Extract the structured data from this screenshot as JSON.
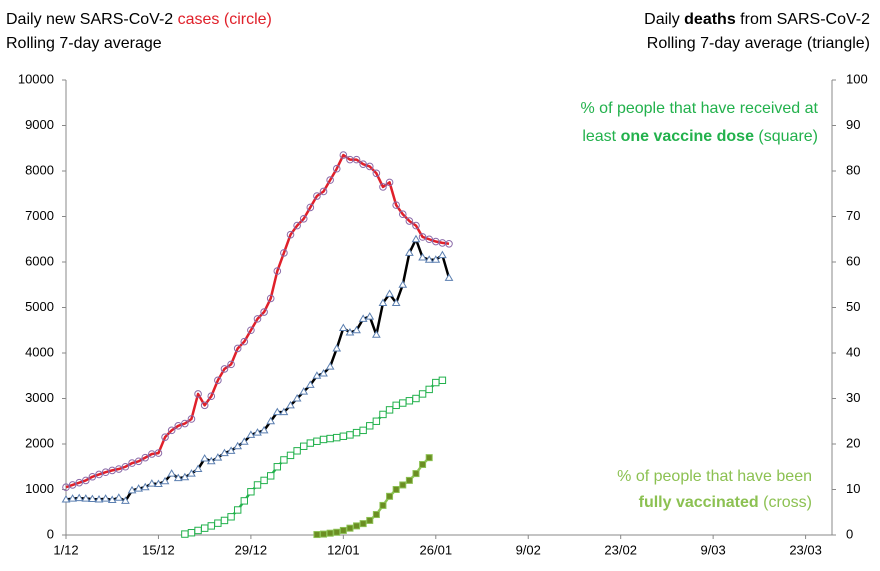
{
  "chart_data": {
    "type": "line",
    "title_left": {
      "line1": [
        "Daily new SARS-CoV-2 ",
        "cases (circle)"
      ],
      "line2": "Rolling 7-day average"
    },
    "title_right": {
      "line1": [
        "Daily ",
        "deaths",
        " from SARS-CoV-2"
      ],
      "line2": "Rolling 7-day average (triangle)"
    },
    "annotations": [
      {
        "line1": "% of people that have received at",
        "line2": [
          "least ",
          "one vaccine dose",
          " (square)"
        ],
        "color": "#22b14c"
      },
      {
        "line1": "% of people that have been",
        "line2": [
          "fully vaccinated",
          " (cross)"
        ],
        "color": "#8cc152"
      }
    ],
    "x": [
      0,
      1,
      2,
      3,
      4,
      5,
      6,
      7,
      8,
      9,
      10,
      11,
      12,
      13,
      14,
      15,
      16,
      17,
      18,
      19,
      20,
      21,
      22,
      23,
      24,
      25,
      26,
      27,
      28,
      29,
      30,
      31,
      32,
      33,
      34,
      35,
      36,
      37,
      38,
      39,
      40,
      41,
      42,
      43,
      44,
      45,
      46,
      47,
      48,
      49,
      50,
      51,
      52,
      53,
      54,
      55,
      56,
      57,
      58
    ],
    "xlim": [
      0,
      116
    ],
    "xticks": [
      {
        "value": 0,
        "label": "1/12"
      },
      {
        "value": 14,
        "label": "15/12"
      },
      {
        "value": 28,
        "label": "29/12"
      },
      {
        "value": 42,
        "label": "12/01"
      },
      {
        "value": 56,
        "label": "26/01"
      },
      {
        "value": 70,
        "label": "9/02"
      },
      {
        "value": 84,
        "label": "23/02"
      },
      {
        "value": 98,
        "label": "9/03"
      },
      {
        "value": 112,
        "label": "23/03"
      }
    ],
    "ylim": [
      0,
      10000
    ],
    "yticks": [
      0,
      1000,
      2000,
      3000,
      4000,
      5000,
      6000,
      7000,
      8000,
      9000,
      10000
    ],
    "y2lim": [
      0,
      100
    ],
    "y2ticks": [
      0,
      10,
      20,
      30,
      40,
      50,
      60,
      70,
      80,
      90,
      100
    ],
    "series": [
      {
        "color": "#e0202a",
        "marker": "circle",
        "marker_color": "#8a6aa8",
        "axis": "y",
        "values": [
          1050,
          1100,
          1150,
          1200,
          1280,
          1330,
          1380,
          1420,
          1450,
          1500,
          1580,
          1620,
          1700,
          1780,
          1800,
          2150,
          2300,
          2400,
          2450,
          2550,
          3100,
          2850,
          3050,
          3400,
          3650,
          3750,
          4100,
          4250,
          4500,
          4750,
          4900,
          5200,
          5800,
          6200,
          6600,
          6800,
          6950,
          7200,
          7450,
          7550,
          7800,
          8050,
          8350,
          8250,
          8250,
          8150,
          8100,
          7950,
          7650,
          7750,
          7250,
          7050,
          6900,
          6800,
          6550,
          6500,
          6450,
          6420,
          6400
        ]
      },
      {
        "color": "#000000",
        "marker": "triangle",
        "marker_color": "#5b7fb0",
        "axis": "y2",
        "values": [
          7.8,
          8,
          8.1,
          8,
          7.9,
          7.8,
          8,
          7.7,
          8.2,
          7.5,
          9.8,
          10.2,
          10.5,
          11.3,
          11.2,
          11.8,
          13.5,
          12.5,
          12.7,
          13.5,
          14.5,
          16.8,
          16.2,
          17,
          18,
          18.5,
          19.5,
          20.5,
          22,
          22.5,
          23,
          25,
          27,
          27,
          28.5,
          30,
          31.5,
          33,
          35,
          35.5,
          37,
          41,
          45.5,
          44.5,
          45,
          47.5,
          48,
          44,
          51,
          53,
          51,
          55,
          62,
          65,
          61,
          60.5,
          60.5,
          61.5,
          56.5
        ]
      },
      {
        "color": "#22b14c",
        "marker": "square",
        "marker_color": "#22b14c",
        "axis": "y2",
        "values": [
          null,
          null,
          null,
          null,
          null,
          null,
          null,
          null,
          null,
          null,
          null,
          null,
          null,
          null,
          null,
          null,
          null,
          null,
          0.2,
          0.5,
          1,
          1.5,
          2,
          2.6,
          3.2,
          4,
          5.5,
          7.5,
          9.5,
          11,
          12,
          13,
          15,
          16.5,
          17.5,
          18.5,
          19.5,
          20.2,
          20.6,
          21,
          21.2,
          21.4,
          21.7,
          22,
          22.5,
          23,
          24,
          25,
          26.5,
          27.5,
          28.5,
          29,
          29.5,
          30,
          31,
          32,
          33.5,
          34,
          null
        ]
      },
      {
        "color": "#8cc152",
        "marker": "cross",
        "marker_color": "#6b8e23",
        "axis": "y2",
        "values": [
          null,
          null,
          null,
          null,
          null,
          null,
          null,
          null,
          null,
          null,
          null,
          null,
          null,
          null,
          null,
          null,
          null,
          null,
          null,
          null,
          null,
          null,
          null,
          null,
          null,
          null,
          null,
          null,
          null,
          null,
          null,
          null,
          null,
          null,
          null,
          null,
          null,
          null,
          0.1,
          0.2,
          0.4,
          0.6,
          1,
          1.5,
          2,
          2.5,
          3.2,
          4.5,
          6.5,
          8.5,
          10,
          11,
          12,
          13.5,
          15.5,
          17,
          null,
          null,
          null
        ]
      }
    ]
  }
}
